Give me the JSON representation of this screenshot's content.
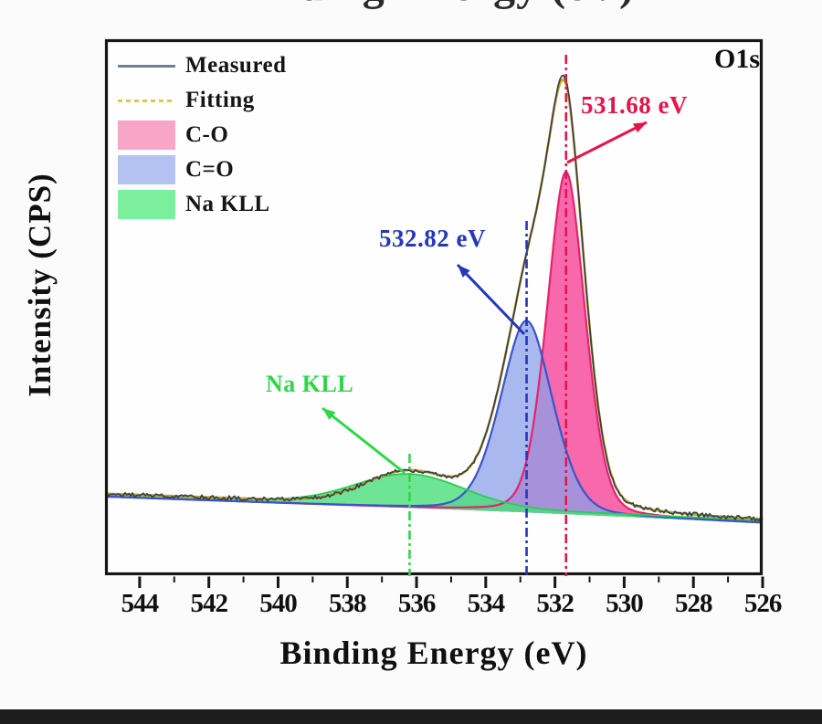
{
  "figure": {
    "cropped_top_text": "Binding Energy (eV)",
    "panel_label": "O1s"
  },
  "legend": {
    "items": [
      {
        "label": "Measured",
        "swatch": "line",
        "color": "#6F8090"
      },
      {
        "label": "Fitting",
        "swatch": "dashed-line",
        "color": "#DCC94F"
      },
      {
        "label": "C-O",
        "swatch": "rect",
        "color": "#F8A5C8"
      },
      {
        "label": "C=O",
        "swatch": "rect",
        "color": "#B4C2F2"
      },
      {
        "label": "Na KLL",
        "swatch": "rect",
        "color": "#7CEF9D"
      }
    ]
  },
  "annotations": {
    "c_o_peak": {
      "text": "531.68 eV",
      "color": "#E3164B"
    },
    "c_double_o_peak": {
      "text": "532.82 eV",
      "color": "#2438B8"
    },
    "na_kll_peak": {
      "text": "Na KLL",
      "color": "#2FD64A"
    }
  },
  "chart_data": {
    "type": "area",
    "title": "",
    "xlabel": "Binding Energy (eV)",
    "ylabel": "Intensity (CPS)",
    "x_axis": {
      "range_eV": [
        545,
        526
      ],
      "tick_labels": [
        "544",
        "542",
        "540",
        "538",
        "536",
        "534",
        "532",
        "530",
        "528",
        "526"
      ],
      "major_tick_step_eV": 2,
      "minor_tick_step_eV": 1,
      "direction": "decreasing"
    },
    "y_axis": {
      "tick_labels": [],
      "note": "intensity in counts per second, unlabeled"
    },
    "series": [
      {
        "name": "Measured",
        "style": "noisy-line",
        "color": "#3A4046"
      },
      {
        "name": "Fitting",
        "style": "line",
        "color": "#C2A42C"
      },
      {
        "name": "C-O",
        "style": "filled-peak",
        "center_eV": 531.68,
        "sigma_eV": 0.58,
        "rel_height": 1.0,
        "fill": "#F768AC",
        "stroke": "#E3246B"
      },
      {
        "name": "C=O",
        "style": "filled-peak",
        "center_eV": 532.82,
        "sigma_eV": 0.79,
        "rel_height": 0.56,
        "fill": "#8CA0EA",
        "stroke": "#3A55C8"
      },
      {
        "name": "Na KLL",
        "style": "filled-peak",
        "center_eV": 536.2,
        "sigma_eV": 1.55,
        "rel_height": 0.091,
        "fill": "#4ADE79",
        "stroke": "#2BCB58"
      }
    ],
    "peak_annotations_eV": [
      531.68,
      532.82
    ],
    "background": "nearly flat Shirley-type baseline, slight downward slope toward low binding energy"
  }
}
